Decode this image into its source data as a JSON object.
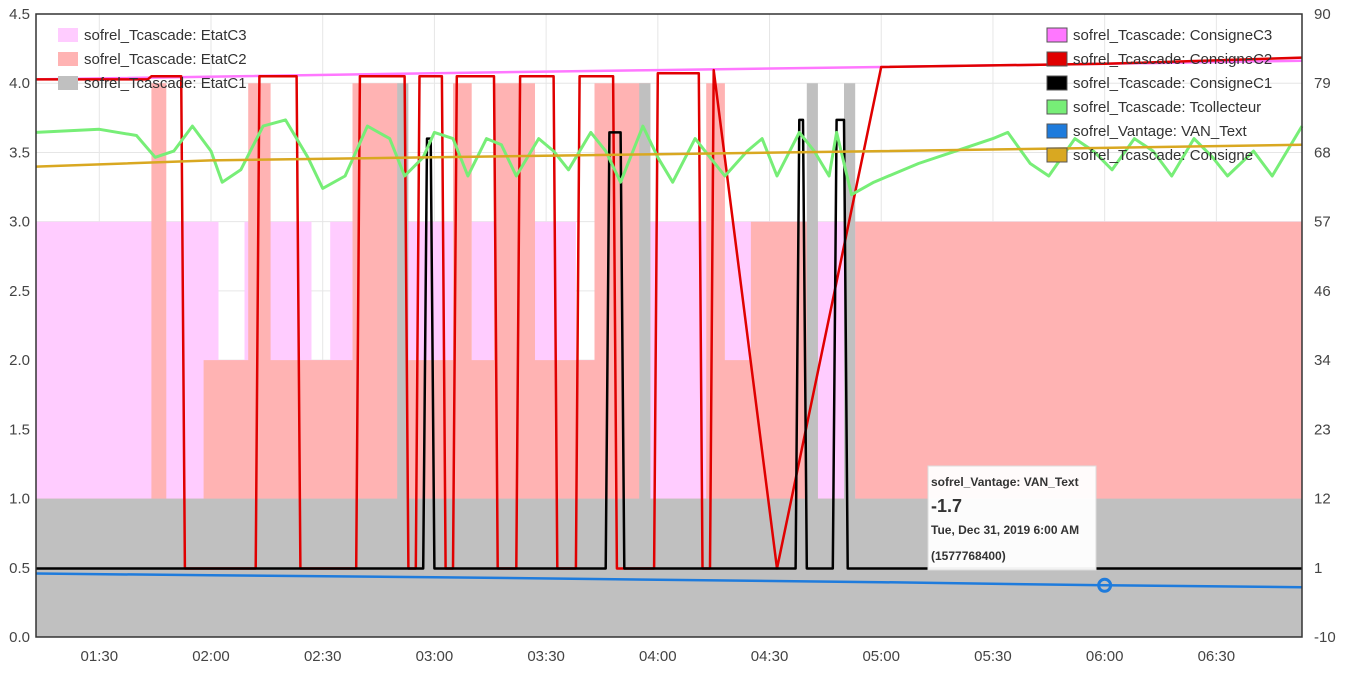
{
  "chart_data": {
    "type": "line",
    "title": "",
    "xlabel": "",
    "ylabel": "",
    "x_ticks": [
      "01:30",
      "02:00",
      "02:30",
      "03:00",
      "03:30",
      "04:00",
      "04:30",
      "05:00",
      "05:30",
      "06:00",
      "06:30"
    ],
    "xlim": [
      "01:13",
      "06:53"
    ],
    "ylim_left": [
      0,
      4.5
    ],
    "y_ticks_left": [
      "0.0",
      "0.5",
      "1.0",
      "1.5",
      "2.0",
      "2.5",
      "3.0",
      "3.5",
      "4.0",
      "4.5"
    ],
    "ylim_right": [
      -10,
      90
    ],
    "y_ticks_right": [
      "-10",
      "1",
      "12",
      "23",
      "34",
      "46",
      "57",
      "68",
      "79",
      "90"
    ],
    "grid": true,
    "legend_left_position": "top-left",
    "legend_right_position": "top-right",
    "series": [
      {
        "name": "sofrel_Tcascade: EtatC3",
        "axis": "left",
        "kind": "area",
        "color": "#ffccff",
        "points": [
          [
            "01:13",
            3
          ],
          [
            "01:45",
            3
          ],
          [
            "01:45",
            2
          ],
          [
            "01:48",
            2
          ],
          [
            "01:48",
            3
          ],
          [
            "01:58",
            3
          ],
          [
            "01:58",
            3
          ],
          [
            "02:02",
            3
          ],
          [
            "02:02",
            2
          ],
          [
            "02:09",
            2
          ],
          [
            "02:09",
            3
          ],
          [
            "02:16",
            3
          ],
          [
            "02:16",
            3
          ],
          [
            "02:27",
            3
          ],
          [
            "02:27",
            2
          ],
          [
            "02:32",
            2
          ],
          [
            "02:32",
            3
          ],
          [
            "02:38",
            3
          ],
          [
            "02:38",
            3
          ],
          [
            "02:44",
            3
          ],
          [
            "02:44",
            2
          ],
          [
            "02:49",
            2
          ],
          [
            "02:49",
            3
          ],
          [
            "02:56",
            3
          ],
          [
            "02:56",
            3
          ],
          [
            "03:05",
            3
          ],
          [
            "03:05",
            2
          ],
          [
            "03:10",
            2
          ],
          [
            "03:10",
            3
          ],
          [
            "03:16",
            3
          ],
          [
            "03:16",
            3
          ],
          [
            "03:22",
            3
          ],
          [
            "03:22",
            2
          ],
          [
            "03:27",
            2
          ],
          [
            "03:27",
            3
          ],
          [
            "03:33",
            3
          ],
          [
            "03:33",
            3
          ],
          [
            "03:38",
            3
          ],
          [
            "03:38",
            2
          ],
          [
            "03:43",
            2
          ],
          [
            "03:43",
            3
          ],
          [
            "03:48",
            3
          ],
          [
            "03:48",
            3
          ],
          [
            "04:03",
            3
          ],
          [
            "04:03",
            3
          ],
          [
            "04:13",
            3
          ],
          [
            "04:13",
            2
          ],
          [
            "04:18",
            2
          ],
          [
            "04:18",
            3
          ],
          [
            "04:25",
            3
          ],
          [
            "04:25",
            3
          ],
          [
            "06:53",
            3
          ]
        ]
      },
      {
        "name": "sofrel_Tcascade: EtatC2",
        "axis": "left",
        "kind": "area",
        "color": "#ffb3b3",
        "points": [
          [
            "01:13",
            1
          ],
          [
            "01:44",
            1
          ],
          [
            "01:44",
            4
          ],
          [
            "01:48",
            4
          ],
          [
            "01:48",
            1
          ],
          [
            "01:58",
            1
          ],
          [
            "01:58",
            2
          ],
          [
            "02:10",
            2
          ],
          [
            "02:10",
            4
          ],
          [
            "02:16",
            4
          ],
          [
            "02:16",
            2
          ],
          [
            "02:27",
            2
          ],
          [
            "02:27",
            2
          ],
          [
            "02:38",
            2
          ],
          [
            "02:38",
            4
          ],
          [
            "02:52",
            4
          ],
          [
            "02:52",
            2
          ],
          [
            "03:05",
            2
          ],
          [
            "03:05",
            4
          ],
          [
            "03:10",
            4
          ],
          [
            "03:10",
            2
          ],
          [
            "03:16",
            2
          ],
          [
            "03:16",
            4
          ],
          [
            "03:27",
            4
          ],
          [
            "03:27",
            2
          ],
          [
            "03:43",
            2
          ],
          [
            "03:43",
            4
          ],
          [
            "03:58",
            4
          ],
          [
            "03:58",
            1
          ],
          [
            "04:13",
            1
          ],
          [
            "04:13",
            4
          ],
          [
            "04:18",
            4
          ],
          [
            "04:18",
            2
          ],
          [
            "04:25",
            2
          ],
          [
            "04:25",
            3
          ],
          [
            "04:43",
            3
          ],
          [
            "04:43",
            1
          ],
          [
            "04:53",
            1
          ],
          [
            "04:53",
            3
          ],
          [
            "06:53",
            3
          ]
        ]
      },
      {
        "name": "sofrel_Tcascade: EtatC1",
        "axis": "left",
        "kind": "area",
        "color": "#c0c0c0",
        "points": [
          [
            "01:13",
            1
          ],
          [
            "02:50",
            1
          ],
          [
            "02:50",
            4
          ],
          [
            "02:53",
            4
          ],
          [
            "02:53",
            1
          ],
          [
            "03:55",
            1
          ],
          [
            "03:55",
            4
          ],
          [
            "03:58",
            4
          ],
          [
            "03:58",
            1
          ],
          [
            "04:40",
            1
          ],
          [
            "04:40",
            4
          ],
          [
            "04:43",
            4
          ],
          [
            "04:43",
            1
          ],
          [
            "04:50",
            1
          ],
          [
            "04:50",
            4
          ],
          [
            "04:53",
            4
          ],
          [
            "04:53",
            1
          ],
          [
            "06:53",
            1
          ]
        ]
      },
      {
        "name": "sofrel_Tcascade: ConsigneC3",
        "axis": "right",
        "kind": "line",
        "color": "#ff77ff",
        "points": [
          [
            "01:13",
            79.5
          ],
          [
            "03:00",
            80.5
          ],
          [
            "04:00",
            81
          ],
          [
            "05:00",
            81.5
          ],
          [
            "06:00",
            82
          ],
          [
            "06:53",
            82.5
          ]
        ]
      },
      {
        "name": "sofrel_Tcascade: ConsigneC2",
        "axis": "right",
        "kind": "line",
        "color": "#e00000",
        "points": [
          [
            "01:13",
            79.5
          ],
          [
            "01:43",
            79.5
          ],
          [
            "01:44",
            80
          ],
          [
            "01:52",
            80
          ],
          [
            "01:53",
            1
          ],
          [
            "02:12",
            1
          ],
          [
            "02:13",
            80
          ],
          [
            "02:23",
            80
          ],
          [
            "02:24",
            1
          ],
          [
            "02:39",
            1
          ],
          [
            "02:40",
            80
          ],
          [
            "02:52",
            80
          ],
          [
            "02:53",
            1
          ],
          [
            "02:55",
            1
          ],
          [
            "02:56",
            80
          ],
          [
            "03:02",
            80
          ],
          [
            "03:03",
            1
          ],
          [
            "03:05",
            1
          ],
          [
            "03:06",
            80
          ],
          [
            "03:16",
            80
          ],
          [
            "03:17",
            1
          ],
          [
            "03:22",
            1
          ],
          [
            "03:23",
            80
          ],
          [
            "03:32",
            80
          ],
          [
            "03:33",
            1
          ],
          [
            "03:38",
            1
          ],
          [
            "03:39",
            80
          ],
          [
            "03:48",
            80
          ],
          [
            "03:49",
            1
          ],
          [
            "03:59",
            1
          ],
          [
            "04:00",
            80.5
          ],
          [
            "04:11",
            80.5
          ],
          [
            "04:12",
            1
          ],
          [
            "04:14",
            1
          ],
          [
            "04:15",
            81
          ],
          [
            "04:32",
            1
          ],
          [
            "05:00",
            81.5
          ],
          [
            "06:00",
            82
          ],
          [
            "06:53",
            83
          ]
        ]
      },
      {
        "name": "sofrel_Tcascade: ConsigneC1",
        "axis": "right",
        "kind": "line",
        "color": "#000000",
        "points": [
          [
            "01:13",
            1
          ],
          [
            "02:57",
            1
          ],
          [
            "02:58",
            70
          ],
          [
            "02:59",
            70
          ],
          [
            "03:00",
            1
          ],
          [
            "03:46",
            1
          ],
          [
            "03:47",
            71
          ],
          [
            "03:50",
            71
          ],
          [
            "03:51",
            1
          ],
          [
            "04:37",
            1
          ],
          [
            "04:38",
            73
          ],
          [
            "04:39",
            73
          ],
          [
            "04:40",
            1
          ],
          [
            "04:47",
            1
          ],
          [
            "04:48",
            73
          ],
          [
            "04:50",
            73
          ],
          [
            "04:51",
            1
          ],
          [
            "06:53",
            1
          ]
        ]
      },
      {
        "name": "sofrel_Tcascade: Tcollecteur",
        "axis": "right",
        "kind": "line",
        "color": "#77ee77",
        "points": [
          [
            "01:13",
            71
          ],
          [
            "01:30",
            71.5
          ],
          [
            "01:40",
            70.5
          ],
          [
            "01:45",
            67
          ],
          [
            "01:50",
            68
          ],
          [
            "01:55",
            72
          ],
          [
            "02:00",
            68
          ],
          [
            "02:03",
            63
          ],
          [
            "02:08",
            65
          ],
          [
            "02:14",
            72
          ],
          [
            "02:20",
            73
          ],
          [
            "02:26",
            67
          ],
          [
            "02:30",
            62
          ],
          [
            "02:36",
            64
          ],
          [
            "02:42",
            72
          ],
          [
            "02:48",
            70
          ],
          [
            "02:52",
            64
          ],
          [
            "02:57",
            67
          ],
          [
            "03:00",
            71
          ],
          [
            "03:05",
            70
          ],
          [
            "03:09",
            64
          ],
          [
            "03:14",
            70
          ],
          [
            "03:18",
            69
          ],
          [
            "03:22",
            64
          ],
          [
            "03:28",
            70
          ],
          [
            "03:32",
            68
          ],
          [
            "03:36",
            65
          ],
          [
            "03:42",
            71
          ],
          [
            "03:46",
            68
          ],
          [
            "03:50",
            63
          ],
          [
            "03:56",
            72
          ],
          [
            "04:00",
            67
          ],
          [
            "04:04",
            63
          ],
          [
            "04:10",
            70
          ],
          [
            "04:14",
            67
          ],
          [
            "04:18",
            64
          ],
          [
            "04:24",
            68
          ],
          [
            "04:28",
            70
          ],
          [
            "04:32",
            64
          ],
          [
            "04:38",
            71
          ],
          [
            "04:42",
            68
          ],
          [
            "04:46",
            64
          ],
          [
            "04:48",
            71
          ],
          [
            "04:52",
            61
          ],
          [
            "04:58",
            63
          ],
          [
            "05:10",
            66
          ],
          [
            "05:20",
            68
          ],
          [
            "05:30",
            70
          ],
          [
            "05:34",
            71
          ],
          [
            "05:40",
            66
          ],
          [
            "05:45",
            64
          ],
          [
            "05:52",
            70
          ],
          [
            "05:57",
            68
          ],
          [
            "06:02",
            65
          ],
          [
            "06:08",
            70
          ],
          [
            "06:13",
            68
          ],
          [
            "06:18",
            64
          ],
          [
            "06:24",
            70
          ],
          [
            "06:29",
            67
          ],
          [
            "06:33",
            64
          ],
          [
            "06:40",
            68
          ],
          [
            "06:45",
            64
          ],
          [
            "06:53",
            72
          ]
        ]
      },
      {
        "name": "sofrel_Vantage: VAN_Text",
        "axis": "right",
        "kind": "line",
        "color": "#1e7bdc",
        "points": [
          [
            "01:13",
            0.2
          ],
          [
            "02:00",
            -0.1
          ],
          [
            "03:00",
            -0.4
          ],
          [
            "04:00",
            -0.8
          ],
          [
            "05:00",
            -1.2
          ],
          [
            "06:00",
            -1.7
          ],
          [
            "06:53",
            -2.0
          ]
        ]
      },
      {
        "name": "sofrel_Tcascade: Consigne",
        "axis": "right",
        "kind": "line",
        "color": "#d9a821",
        "points": [
          [
            "01:13",
            65.5
          ],
          [
            "02:00",
            66.5
          ],
          [
            "03:00",
            67
          ],
          [
            "04:00",
            67.5
          ],
          [
            "05:00",
            68
          ],
          [
            "06:00",
            68.5
          ],
          [
            "06:53",
            69
          ]
        ]
      }
    ],
    "tooltip": {
      "series": "sofrel_Vantage: VAN_Text",
      "value": "-1.7",
      "date": "Tue, Dec 31, 2019 6:00 AM",
      "timestamp": "(1577768400)",
      "x": "06:00",
      "y": -1.7
    }
  }
}
